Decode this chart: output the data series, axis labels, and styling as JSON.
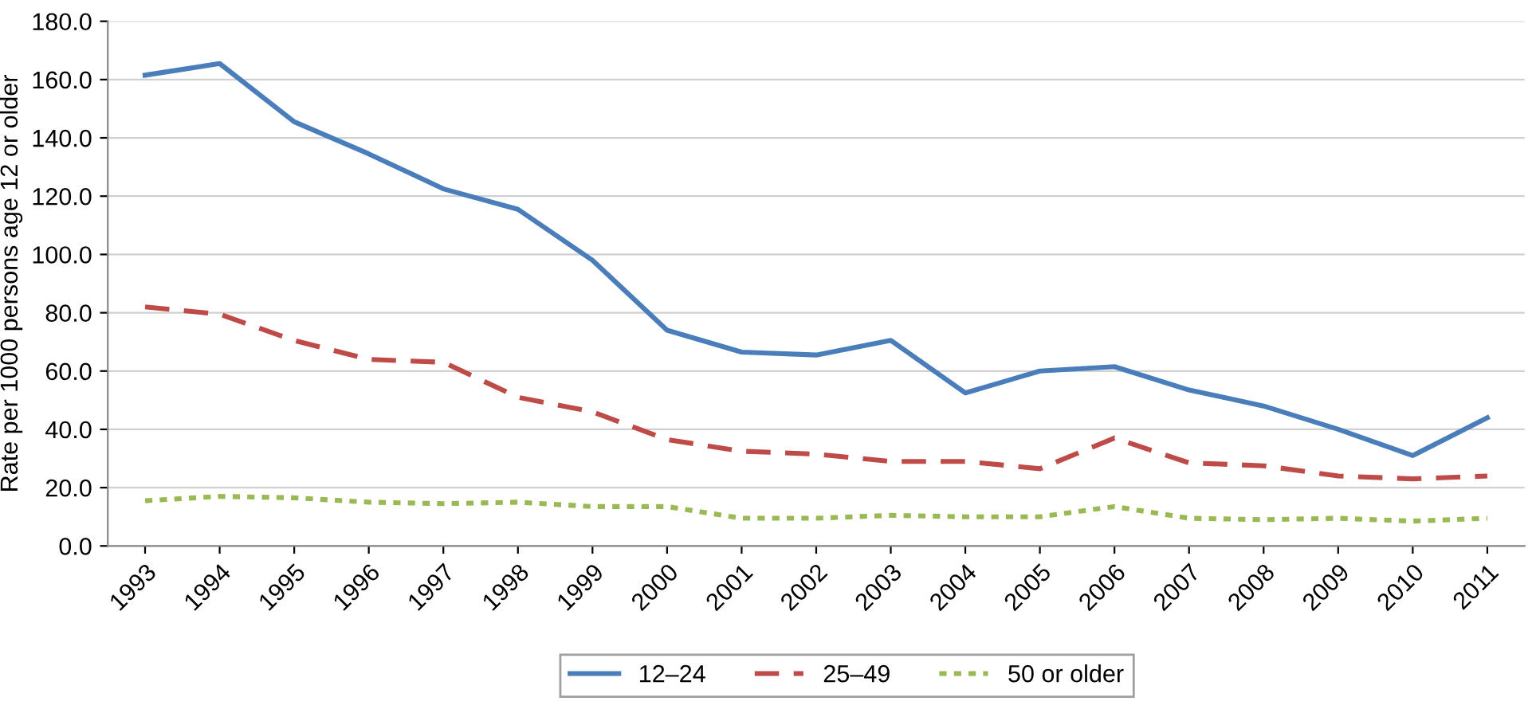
{
  "chart_data": {
    "type": "line",
    "ylabel": "Rate per 1000 persons age 12 or older",
    "categories": [
      "1993",
      "1994",
      "1995",
      "1996",
      "1997",
      "1998",
      "1999",
      "2000",
      "2001",
      "2002",
      "2003",
      "2004",
      "2005",
      "2006",
      "2007",
      "2008",
      "2009",
      "2010",
      "2011"
    ],
    "series": [
      {
        "name": "12–24",
        "color": "#4a7ebb",
        "line_style": "solid",
        "values": [
          161.5,
          165.5,
          145.5,
          134.5,
          122.5,
          115.5,
          98,
          74,
          66.5,
          65.5,
          70.5,
          52.5,
          60,
          61.5,
          53.5,
          48,
          40,
          31,
          44
        ]
      },
      {
        "name": "25–49",
        "color": "#be4b48",
        "line_style": "dashed",
        "values": [
          82,
          79.5,
          70.5,
          64,
          63,
          51,
          46,
          36.5,
          32.5,
          31.5,
          29,
          29,
          26.5,
          37,
          28.5,
          27.5,
          24,
          23,
          24
        ]
      },
      {
        "name": "50 or older",
        "color": "#98b954",
        "line_style": "dotted",
        "values": [
          15.5,
          17,
          16.5,
          15,
          14.5,
          15,
          13.5,
          13.5,
          9.5,
          9.5,
          10.5,
          10,
          10,
          13.5,
          9.5,
          9,
          9.5,
          8.5,
          9.5
        ]
      }
    ],
    "ylim": [
      0,
      180
    ],
    "yticks": [
      {
        "value": 0,
        "label": "0.0"
      },
      {
        "value": 20,
        "label": "20.0"
      },
      {
        "value": 40,
        "label": "40.0"
      },
      {
        "value": 60,
        "label": "60.0"
      },
      {
        "value": 80,
        "label": "80.0"
      },
      {
        "value": 100,
        "label": "100.0"
      },
      {
        "value": 120,
        "label": "120.0"
      },
      {
        "value": 140,
        "label": "140.0"
      },
      {
        "value": 160,
        "label": "160.0"
      },
      {
        "value": 180,
        "label": "180.0"
      }
    ],
    "grid": "y",
    "legend": "bottom",
    "marker": "none"
  }
}
